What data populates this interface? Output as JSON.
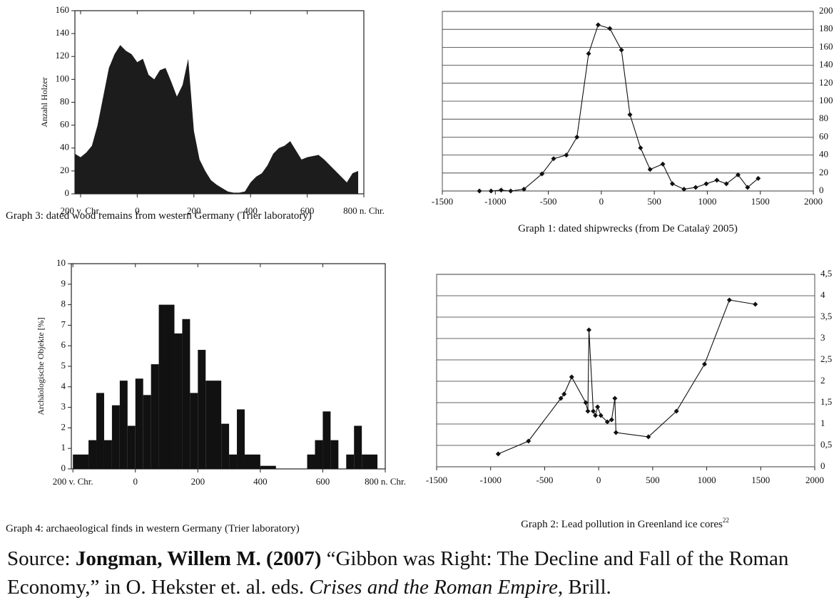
{
  "chart_data": [
    {
      "type": "area",
      "title": "Graph 3: dated wood remains from western Germany (Trier laboratory)",
      "ylabel": "Anzahl Holzer",
      "color": "#1c1c1c",
      "grid": false,
      "y_axis_side": "left",
      "x": [
        -220,
        -200,
        -180,
        -160,
        -140,
        -120,
        -100,
        -80,
        -60,
        -40,
        -20,
        0,
        20,
        40,
        60,
        80,
        100,
        120,
        140,
        160,
        180,
        200,
        220,
        240,
        260,
        280,
        300,
        320,
        340,
        360,
        380,
        400,
        420,
        440,
        460,
        480,
        500,
        520,
        540,
        560,
        580,
        600,
        620,
        640,
        660,
        680,
        700,
        720,
        740,
        760,
        780
      ],
      "values": [
        35,
        32,
        36,
        42,
        60,
        85,
        110,
        122,
        130,
        125,
        122,
        115,
        118,
        104,
        100,
        108,
        110,
        98,
        85,
        95,
        118,
        55,
        30,
        20,
        12,
        8,
        5,
        2,
        1,
        1,
        2,
        10,
        15,
        18,
        25,
        35,
        40,
        42,
        46,
        38,
        30,
        32,
        33,
        34,
        30,
        25,
        20,
        15,
        10,
        18,
        20
      ],
      "xlim": [
        -220,
        800
      ],
      "xticks": [
        {
          "value": -200,
          "label": "200 v. Chr."
        },
        0,
        200,
        400,
        600,
        {
          "value": 800,
          "label": "800 n. Chr."
        }
      ],
      "ylim": [
        0,
        160
      ],
      "yticks": [
        0,
        20,
        40,
        60,
        80,
        100,
        120,
        140,
        160
      ]
    },
    {
      "type": "line",
      "title": "Graph 1: dated shipwrecks (from De Catalaÿ 2005)",
      "color": "#111111",
      "grid": true,
      "y_axis_side": "right",
      "x": [
        -1150,
        -1040,
        -945,
        -855,
        -730,
        -560,
        -450,
        -330,
        -230,
        -120,
        -30,
        80,
        190,
        270,
        370,
        460,
        580,
        670,
        780,
        890,
        990,
        1090,
        1180,
        1290,
        1380,
        1480
      ],
      "values": [
        0,
        0,
        1,
        0,
        2,
        19,
        36,
        40,
        60,
        153,
        185,
        181,
        157,
        85,
        48,
        24,
        30,
        8,
        2,
        4,
        8,
        12,
        8,
        18,
        4,
        14
      ],
      "xlim": [
        -1500,
        2000
      ],
      "xticks": [
        -1500,
        -1000,
        -500,
        0,
        500,
        1000,
        1500,
        2000
      ],
      "ylim": [
        0,
        200
      ],
      "yticks": [
        0,
        20,
        40,
        60,
        80,
        100,
        120,
        140,
        160,
        180,
        200
      ]
    },
    {
      "type": "histogram",
      "title": "Graph 4: archaeological finds in western Germany (Trier laboratory)",
      "ylabel": "Archäologische Objekte [%]",
      "color": "#111111",
      "grid": false,
      "y_axis_side": "left",
      "bins": [
        -200,
        -150,
        -125,
        -100,
        -75,
        -50,
        -25,
        0,
        25,
        50,
        75,
        125,
        150,
        175,
        200,
        225,
        275,
        300,
        325,
        350,
        400,
        450,
        550,
        575,
        600,
        625,
        650,
        675,
        700,
        725,
        775
      ],
      "values": [
        0.7,
        1.4,
        3.7,
        1.4,
        3.1,
        4.3,
        2.1,
        4.4,
        3.6,
        5.1,
        8.0,
        6.6,
        7.3,
        3.7,
        5.8,
        4.3,
        2.2,
        0.7,
        2.9,
        0.7,
        0.15,
        0,
        0.7,
        1.4,
        2.8,
        1.4,
        0,
        0.7,
        2.1,
        0.7
      ],
      "xlim": [
        -205,
        800
      ],
      "xticks": [
        {
          "value": -200,
          "label": "200 v. Chr."
        },
        0,
        200,
        400,
        600,
        {
          "value": 800,
          "label": "800 n. Chr."
        }
      ],
      "ylim": [
        0,
        10
      ],
      "yticks": [
        0,
        1,
        2,
        3,
        4,
        5,
        6,
        7,
        8,
        9,
        10
      ]
    },
    {
      "type": "line",
      "title": "Graph 2: Lead pollution in Greenland ice cores",
      "title_note": "22",
      "color": "#111111",
      "grid": true,
      "y_axis_side": "right",
      "x": [
        -930,
        -650,
        -350,
        -320,
        -250,
        -120,
        -100,
        -90,
        -50,
        -30,
        -10,
        20,
        80,
        120,
        150,
        160,
        460,
        720,
        980,
        1210,
        1450
      ],
      "values": [
        0.3,
        0.6,
        1.6,
        1.7,
        2.1,
        1.5,
        1.3,
        3.2,
        1.3,
        1.2,
        1.4,
        1.2,
        1.05,
        1.1,
        1.6,
        0.8,
        0.7,
        1.3,
        2.4,
        3.9,
        3.8
      ],
      "xlim": [
        -1500,
        2000
      ],
      "xticks": [
        -1500,
        -1000,
        -500,
        0,
        500,
        1000,
        1500,
        2000
      ],
      "ylim": [
        0,
        4.5
      ],
      "yticks": [
        0,
        {
          "value": 0.5,
          "label": "0,5"
        },
        1,
        {
          "value": 1.5,
          "label": "1,5"
        },
        2,
        {
          "value": 2.5,
          "label": "2,5"
        },
        3,
        {
          "value": 3.5,
          "label": "3,5"
        },
        4,
        {
          "value": 4.5,
          "label": "4,5"
        }
      ]
    }
  ],
  "source": {
    "prefix": "Source:",
    "author": "Jongman, Willem M. (2007)",
    "text": "“Gibbon was Right: The Decline and Fall of the Roman Economy,” in O. Hekster et. al. eds.",
    "book": "Crises and the Roman Empire",
    "end": ", Brill."
  }
}
